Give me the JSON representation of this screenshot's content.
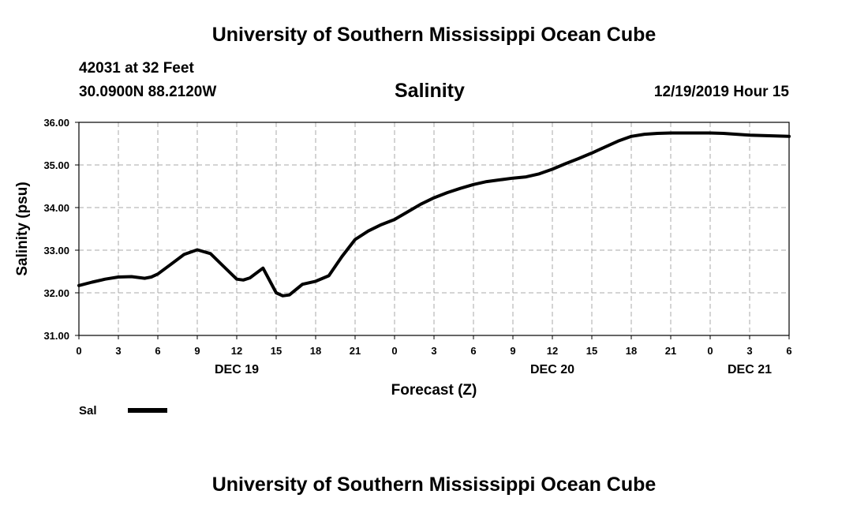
{
  "header": {
    "title": "University of Southern Mississippi Ocean Cube",
    "station": "42031 at 32 Feet",
    "coords": "30.0900N 88.2120W",
    "chart_title": "Salinity",
    "datetime": "12/19/2019 Hour 15"
  },
  "footer": {
    "title": "University of Southern Mississippi Ocean Cube"
  },
  "legend": {
    "label": "Sal"
  },
  "chart_data": {
    "type": "line",
    "title": "Salinity",
    "xlabel": "Forecast (Z)",
    "ylabel": "Salinity (psu)",
    "ylim": [
      31,
      36
    ],
    "xlim": [
      0,
      54
    ],
    "yticks": [
      "31.00",
      "32.00",
      "33.00",
      "34.00",
      "35.00",
      "36.00"
    ],
    "xticks": [
      "0",
      "3",
      "6",
      "9",
      "12",
      "15",
      "18",
      "21",
      "0",
      "3",
      "6",
      "9",
      "12",
      "15",
      "18",
      "21",
      "0",
      "3",
      "6"
    ],
    "day_labels": [
      {
        "label": "DEC 19",
        "hour": 12
      },
      {
        "label": "DEC 20",
        "hour": 36
      },
      {
        "label": "DEC 21",
        "hour": 51
      }
    ],
    "grid": true,
    "series": [
      {
        "name": "Sal",
        "x": [
          0,
          1,
          2,
          3,
          4,
          5,
          5.5,
          6,
          7,
          8,
          9,
          10,
          11,
          12,
          12.5,
          13,
          14,
          15,
          15.5,
          16,
          17,
          18,
          19,
          20,
          21,
          22,
          23,
          24,
          25,
          26,
          27,
          28,
          29,
          30,
          31,
          32,
          33,
          34,
          35,
          36,
          37,
          38,
          39,
          40,
          41,
          42,
          43,
          44,
          45,
          46,
          47,
          48,
          49,
          50,
          51,
          52,
          53,
          54
        ],
        "values": [
          32.17,
          32.25,
          32.32,
          32.37,
          32.38,
          32.34,
          32.37,
          32.44,
          32.67,
          32.9,
          33.01,
          32.92,
          32.62,
          32.32,
          32.3,
          32.35,
          32.58,
          32.0,
          31.93,
          31.95,
          32.2,
          32.27,
          32.4,
          32.85,
          33.25,
          33.45,
          33.6,
          33.72,
          33.9,
          34.08,
          34.23,
          34.35,
          34.45,
          34.54,
          34.61,
          34.65,
          34.69,
          34.72,
          34.79,
          34.9,
          35.03,
          35.15,
          35.28,
          35.42,
          35.56,
          35.67,
          35.72,
          35.74,
          35.75,
          35.75,
          35.75,
          35.75,
          35.74,
          35.72,
          35.7,
          35.69,
          35.68,
          35.67
        ]
      }
    ]
  }
}
